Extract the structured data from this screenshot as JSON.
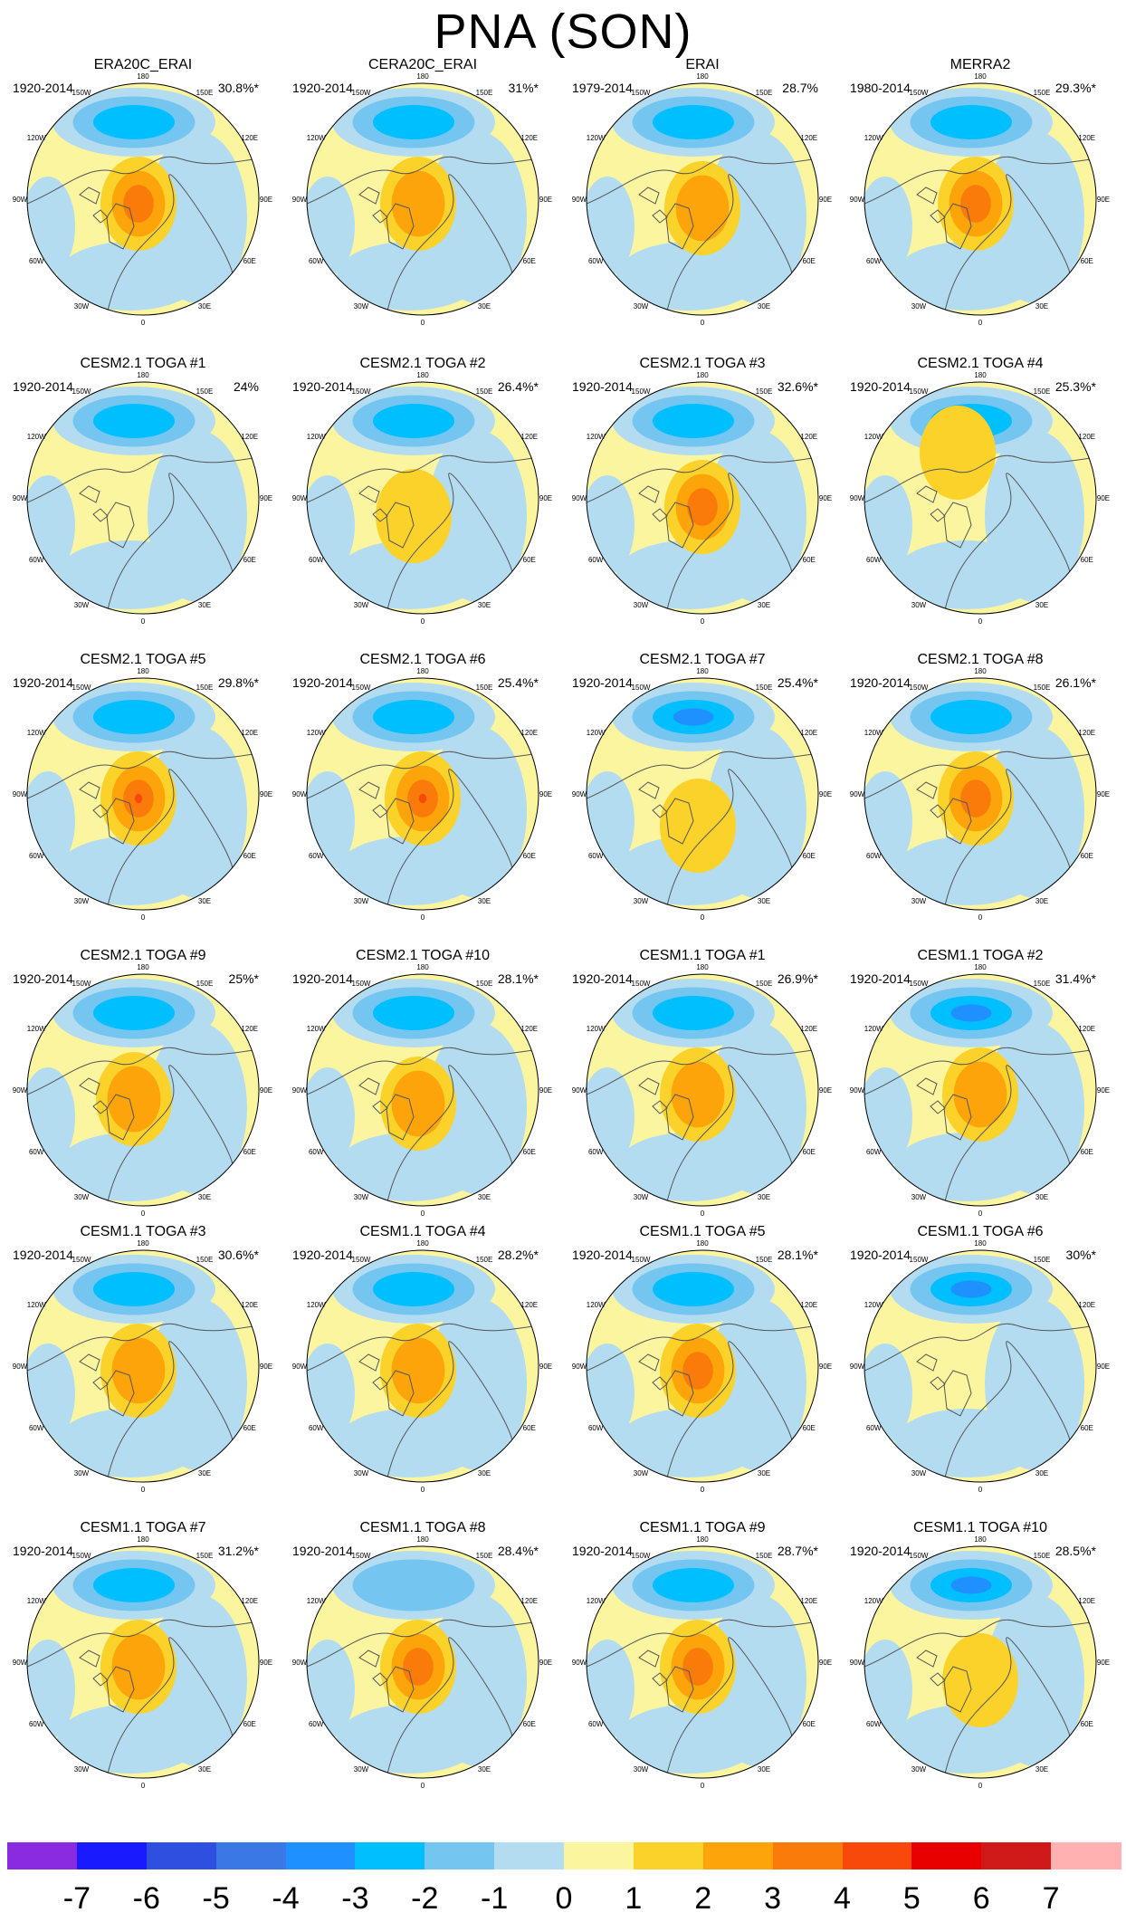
{
  "title": "PNA (SON)",
  "colors": {
    "purple": "#8a2be2",
    "blue_dark": "#1a1aff",
    "blue_med": "#2f4fe0",
    "blue_5": "#3a78e6",
    "blue_4": "#1e90ff",
    "blue_3": "#00bfff",
    "blue_2": "#74c6f0",
    "blue_1": "#b4dcf0",
    "yellow_0": "#fcf5a0",
    "yellow_1": "#fbd22a",
    "orange_2": "#fca40a",
    "orange_3": "#fa7a0a",
    "red_4": "#f8480a",
    "red_5": "#e80000",
    "red_6": "#d01a1a",
    "pink": "#ffb0b0",
    "coast": "#555555"
  },
  "lon_labels": {
    "top": "180",
    "top_left": "150W",
    "top_right": "150E",
    "upper_left": "120W",
    "upper_right": "120E",
    "left": "90W",
    "right": "90E",
    "lower_left": "60W",
    "lower_right": "60E",
    "bottom_left": "30W",
    "bottom_right": "30E",
    "bottom": "0"
  },
  "panels": [
    {
      "title": "ERA20C_ERAI",
      "years": "1920-2014",
      "pct": "30.8%*",
      "pos_amp": 3,
      "neg_amp": 3,
      "pos_shift": [
        0,
        0
      ]
    },
    {
      "title": "CERA20C_ERAI",
      "years": "1920-2014",
      "pct": "31%*",
      "pos_amp": 2,
      "neg_amp": 3,
      "pos_shift": [
        0,
        0
      ]
    },
    {
      "title": "ERAI",
      "years": "1979-2014",
      "pct": "28.7%",
      "pos_amp": 2,
      "neg_amp": 3,
      "pos_shift": [
        5,
        5
      ]
    },
    {
      "title": "MERRA2",
      "years": "1980-2014",
      "pct": "29.3%*",
      "pos_amp": 3,
      "neg_amp": 3,
      "pos_shift": [
        0,
        0
      ]
    },
    {
      "title": "CESM2.1 TOGA #1",
      "years": "1920-2014",
      "pct": "24%",
      "pos_amp": 0,
      "neg_amp": 3,
      "pos_shift": [
        0,
        0
      ]
    },
    {
      "title": "CESM2.1 TOGA #2",
      "years": "1920-2014",
      "pct": "26.4%*",
      "pos_amp": 1,
      "neg_amp": 3,
      "pos_shift": [
        -5,
        15
      ]
    },
    {
      "title": "CESM2.1 TOGA #3",
      "years": "1920-2014",
      "pct": "32.6%*",
      "pos_amp": 3,
      "neg_amp": 3,
      "pos_shift": [
        5,
        5
      ]
    },
    {
      "title": "CESM2.1 TOGA #4",
      "years": "1920-2014",
      "pct": "25.3%*",
      "pos_amp": 1,
      "neg_amp": 3,
      "pos_shift": [
        -20,
        -55
      ]
    },
    {
      "title": "CESM2.1 TOGA #5",
      "years": "1920-2014",
      "pct": "29.8%*",
      "pos_amp": 4,
      "neg_amp": 3,
      "pos_shift": [
        0,
        0
      ]
    },
    {
      "title": "CESM2.1 TOGA #6",
      "years": "1920-2014",
      "pct": "25.4%*",
      "pos_amp": 4,
      "neg_amp": 3,
      "pos_shift": [
        5,
        0
      ]
    },
    {
      "title": "CESM2.1 TOGA #7",
      "years": "1920-2014",
      "pct": "25.4%*",
      "pos_amp": 1,
      "neg_amp": 4,
      "pos_shift": [
        0,
        30
      ]
    },
    {
      "title": "CESM2.1 TOGA #8",
      "years": "1920-2014",
      "pct": "26.1%*",
      "pos_amp": 3,
      "neg_amp": 3,
      "pos_shift": [
        0,
        0
      ]
    },
    {
      "title": "CESM2.1 TOGA #9",
      "years": "1920-2014",
      "pct": "25%*",
      "pos_amp": 2,
      "neg_amp": 3,
      "pos_shift": [
        -5,
        5
      ]
    },
    {
      "title": "CESM2.1 TOGA #10",
      "years": "1920-2014",
      "pct": "28.1%*",
      "pos_amp": 2,
      "neg_amp": 3,
      "pos_shift": [
        0,
        10
      ]
    },
    {
      "title": "CESM1.1 TOGA #1",
      "years": "1920-2014",
      "pct": "26.9%*",
      "pos_amp": 2,
      "neg_amp": 3,
      "pos_shift": [
        0,
        0
      ]
    },
    {
      "title": "CESM1.1 TOGA #2",
      "years": "1920-2014",
      "pct": "31.4%*",
      "pos_amp": 2,
      "neg_amp": 4,
      "pos_shift": [
        5,
        0
      ]
    },
    {
      "title": "CESM1.1 TOGA #3",
      "years": "1920-2014",
      "pct": "30.6%*",
      "pos_amp": 2,
      "neg_amp": 3,
      "pos_shift": [
        0,
        0
      ]
    },
    {
      "title": "CESM1.1 TOGA #4",
      "years": "1920-2014",
      "pct": "28.2%*",
      "pos_amp": 2,
      "neg_amp": 3,
      "pos_shift": [
        0,
        0
      ]
    },
    {
      "title": "CESM1.1 TOGA #5",
      "years": "1920-2014",
      "pct": "28.1%*",
      "pos_amp": 3,
      "neg_amp": 3,
      "pos_shift": [
        0,
        0
      ]
    },
    {
      "title": "CESM1.1 TOGA #6",
      "years": "1920-2014",
      "pct": "30%*",
      "pos_amp": 0,
      "neg_amp": 4,
      "pos_shift": [
        0,
        0
      ]
    },
    {
      "title": "CESM1.1 TOGA #7",
      "years": "1920-2014",
      "pct": "31.2%*",
      "pos_amp": 2,
      "neg_amp": 3,
      "pos_shift": [
        0,
        0
      ]
    },
    {
      "title": "CESM1.1 TOGA #8",
      "years": "1920-2014",
      "pct": "28.4%*",
      "pos_amp": 3,
      "neg_amp": 2,
      "pos_shift": [
        0,
        0
      ]
    },
    {
      "title": "CESM1.1 TOGA #9",
      "years": "1920-2014",
      "pct": "28.7%*",
      "pos_amp": 3,
      "neg_amp": 3,
      "pos_shift": [
        0,
        0
      ]
    },
    {
      "title": "CESM1.1 TOGA #10",
      "years": "1920-2014",
      "pct": "28.5%*",
      "pos_amp": 1,
      "neg_amp": 4,
      "pos_shift": [
        5,
        15
      ]
    }
  ],
  "colorbar": {
    "labels": [
      "-7",
      "-6",
      "-5",
      "-4",
      "-3",
      "-2",
      "-1",
      "0",
      "1",
      "2",
      "3",
      "4",
      "5",
      "6",
      "7"
    ],
    "colors": [
      "#8a2be2",
      "#1a1aff",
      "#2f4fe0",
      "#3a78e6",
      "#1e90ff",
      "#00bfff",
      "#74c6f0",
      "#b4dcf0",
      "#fcf5a0",
      "#fbd22a",
      "#fca40a",
      "#fa7a0a",
      "#f8480a",
      "#e80000",
      "#d01a1a",
      "#ffb0b0"
    ]
  }
}
